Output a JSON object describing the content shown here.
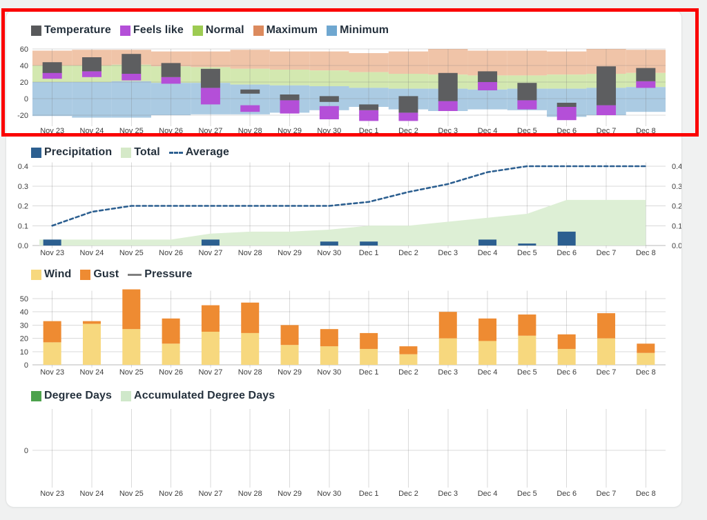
{
  "page": {
    "background": "#f0f1f1"
  },
  "annotation": {
    "type": "highlight-rectangle",
    "color": "#fb0100",
    "target": "temperature-chart"
  },
  "dates": [
    "Nov 23",
    "Nov 24",
    "Nov 25",
    "Nov 26",
    "Nov 27",
    "Nov 28",
    "Nov 29",
    "Nov 30",
    "Dec 1",
    "Dec 2",
    "Dec 3",
    "Dec 4",
    "Dec 5",
    "Dec 6",
    "Dec 7",
    "Dec 8"
  ],
  "chart_data": [
    {
      "id": "temperature",
      "type": "range-bar+band",
      "legend": [
        {
          "label": "Temperature",
          "color": "#58595b",
          "swatch": "box"
        },
        {
          "label": "Feels like",
          "color": "#b44fd8",
          "swatch": "box"
        },
        {
          "label": "Normal",
          "color": "#9dcb52",
          "swatch": "box"
        },
        {
          "label": "Maximum",
          "color": "#dc8a5e",
          "swatch": "box"
        },
        {
          "label": "Minimum",
          "color": "#6fa7d0",
          "swatch": "box"
        }
      ],
      "yticks": [
        60,
        40,
        20,
        0,
        -20
      ],
      "ylim": [
        -30,
        60
      ],
      "series": {
        "temperature_range": [
          [
            31,
            44
          ],
          [
            33,
            50
          ],
          [
            30,
            54
          ],
          [
            26,
            43
          ],
          [
            13,
            36
          ],
          [
            6,
            11
          ],
          [
            -2,
            5
          ],
          [
            -4,
            3
          ],
          [
            -14,
            -7
          ],
          [
            -17,
            3
          ],
          [
            -3,
            31
          ],
          [
            20,
            33
          ],
          [
            -2,
            19
          ],
          [
            -10,
            -5
          ],
          [
            -8,
            39
          ],
          [
            21,
            37
          ]
        ],
        "feels_like_range": [
          [
            24,
            32
          ],
          [
            26,
            33
          ],
          [
            22,
            30
          ],
          [
            18,
            26
          ],
          [
            -7,
            13
          ],
          [
            -16,
            -8
          ],
          [
            -18,
            -2
          ],
          [
            -25,
            -9
          ],
          [
            -27,
            -14
          ],
          [
            -27,
            -17
          ],
          [
            -15,
            -3
          ],
          [
            10,
            20
          ],
          [
            -13,
            -2
          ],
          [
            -26,
            -10
          ],
          [
            -20,
            -8
          ],
          [
            13,
            21
          ]
        ],
        "minimum_band": [
          [
            -21,
            20
          ],
          [
            -23,
            20
          ],
          [
            -23,
            21
          ],
          [
            -20,
            19
          ],
          [
            -19,
            19
          ],
          [
            -19,
            17
          ],
          [
            -17,
            16
          ],
          [
            -14,
            15
          ],
          [
            -10,
            13
          ],
          [
            -13,
            12
          ],
          [
            -15,
            12
          ],
          [
            -13,
            11
          ],
          [
            -14,
            12
          ],
          [
            -22,
            12
          ],
          [
            -20,
            13
          ],
          [
            -16,
            14
          ]
        ],
        "normal_band_top": [
          40,
          40,
          41,
          39,
          38,
          36,
          35,
          34,
          32,
          30,
          29,
          28,
          28,
          29,
          30,
          31
        ],
        "maximum_band_top": [
          58,
          59,
          59,
          57,
          57,
          59,
          57,
          57,
          55,
          57,
          60,
          58,
          58,
          57,
          60,
          59
        ]
      },
      "band_colors": {
        "minimum": "#abcbe3",
        "normal": "#d3e8b0",
        "maximum": "#f0c4a8"
      },
      "bar_colors": {
        "temperature": "#5d5e60",
        "feels_like": "#b44fd8"
      }
    },
    {
      "id": "precipitation",
      "type": "bar+area+line",
      "legend": [
        {
          "label": "Precipitation",
          "color": "#2c5f90",
          "swatch": "box"
        },
        {
          "label": "Total",
          "color": "#d5e9c8",
          "swatch": "box"
        },
        {
          "label": "Average",
          "color": "#2c5f90",
          "swatch": "dashed-line"
        }
      ],
      "yticks": [
        0.4,
        0.3,
        0.2,
        0.1,
        0.0
      ],
      "ylim": [
        0,
        0.44
      ],
      "right_axis": true,
      "series": {
        "precipitation": [
          0.03,
          0,
          0,
          0,
          0.03,
          0,
          0,
          0.02,
          0.02,
          0,
          0,
          0.03,
          0.01,
          0.07,
          0,
          0
        ],
        "total": [
          0.03,
          0.03,
          0.03,
          0.03,
          0.06,
          0.07,
          0.07,
          0.08,
          0.1,
          0.1,
          0.12,
          0.14,
          0.16,
          0.23,
          0.23,
          0.23
        ],
        "average": [
          0.1,
          0.17,
          0.2,
          0.2,
          0.2,
          0.2,
          0.2,
          0.2,
          0.22,
          0.27,
          0.31,
          0.37,
          0.4,
          0.4,
          0.4,
          0.4
        ]
      },
      "series_colors": {
        "precipitation": "#2c5f90",
        "total": "#ddefd5",
        "average": "#2c5f90"
      }
    },
    {
      "id": "wind",
      "type": "stacked-bar",
      "legend": [
        {
          "label": "Wind",
          "color": "#f7d87e",
          "swatch": "box"
        },
        {
          "label": "Gust",
          "color": "#ee8b32",
          "swatch": "box"
        },
        {
          "label": "Pressure",
          "color": "#7f7f7f",
          "swatch": "line"
        }
      ],
      "yticks": [
        50,
        40,
        30,
        20,
        10,
        0
      ],
      "ylim": [
        0,
        58
      ],
      "series": [
        {
          "name": "Wind",
          "color": "#f7d87e",
          "values": [
            17,
            31,
            27,
            16,
            25,
            24,
            15,
            14,
            12,
            8,
            20,
            18,
            22,
            12,
            20,
            9
          ]
        },
        {
          "name": "Gust",
          "color": "#ee8b32",
          "values": [
            16,
            2,
            30,
            19,
            20,
            23,
            15,
            13,
            12,
            6,
            20,
            17,
            16,
            11,
            19,
            7
          ]
        }
      ]
    },
    {
      "id": "degree_days",
      "type": "bar+area",
      "legend": [
        {
          "label": "Degree Days",
          "color": "#4ca24c",
          "swatch": "box"
        },
        {
          "label": "Accumulated Degree Days",
          "color": "#cfe8ca",
          "swatch": "box"
        }
      ],
      "yticks": [
        0
      ],
      "series": {
        "degree_days": [
          0,
          0,
          0,
          0,
          0,
          0,
          0,
          0,
          0,
          0,
          0,
          0,
          0,
          0,
          0,
          0
        ],
        "accumulated_degree_days": [
          0,
          0,
          0,
          0,
          0,
          0,
          0,
          0,
          0,
          0,
          0,
          0,
          0,
          0,
          0,
          0
        ]
      }
    }
  ]
}
